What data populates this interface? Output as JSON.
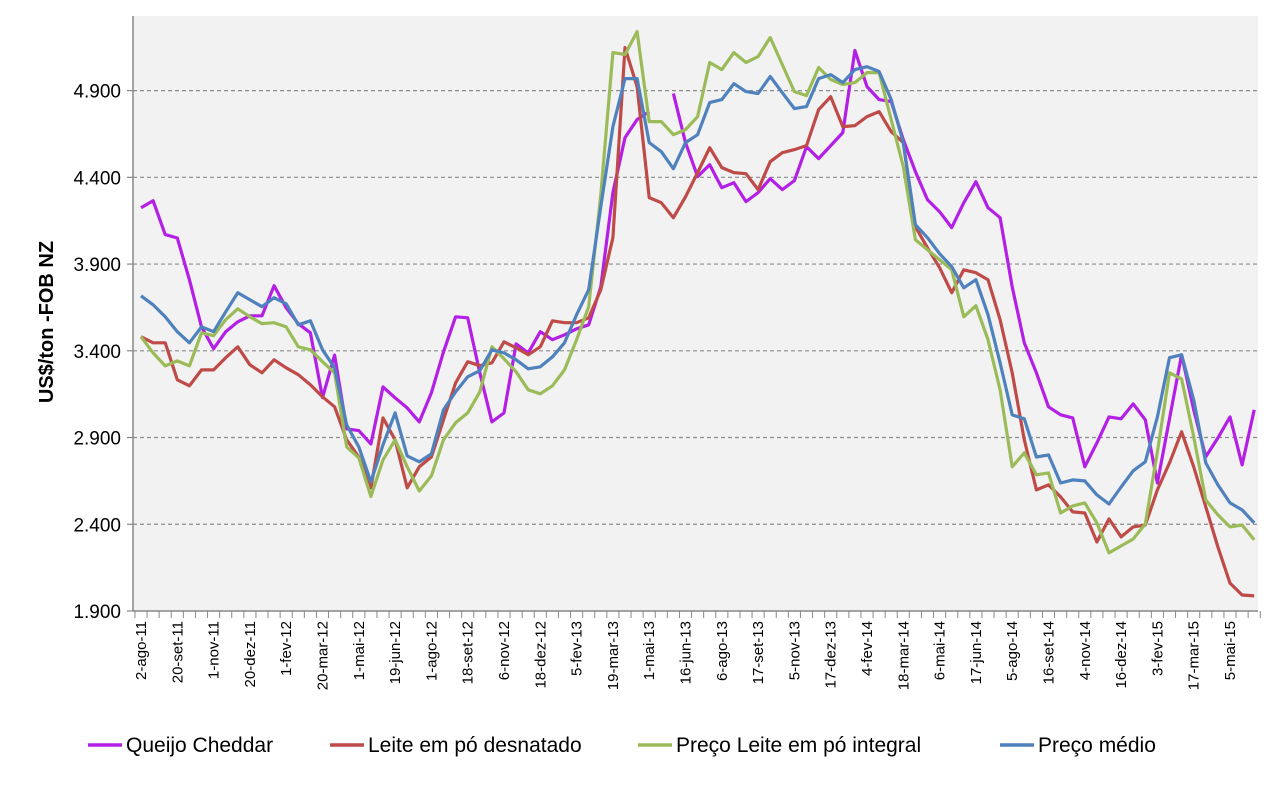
{
  "chart_data": {
    "type": "line",
    "title": "",
    "xlabel": "",
    "ylabel": "US$/ton -FOB NZ",
    "ylim": [
      1900,
      5330
    ],
    "y_ticks": [
      "1.900",
      "2.400",
      "2.900",
      "3.400",
      "3.900",
      "4.400",
      "4.900"
    ],
    "y_tick_values": [
      1900,
      2400,
      2900,
      3400,
      3900,
      4400,
      4900
    ],
    "x_tick_labels": [
      "2-ago-11",
      "20-set-11",
      "1-nov-11",
      "20-dez-11",
      "1-fev-12",
      "20-mar-12",
      "1-mai-12",
      "19-jun-12",
      "1-ago-12",
      "18-set-12",
      "6-nov-12",
      "18-dez-12",
      "5-fev-13",
      "19-mar-13",
      "1-mai-13",
      "16-jun-13",
      "6-ago-13",
      "17-set-13",
      "5-nov-13",
      "17-dez-13",
      "4-fev-14",
      "18-mar-14",
      "6-mai-14",
      "17-jun-14",
      "5-ago-14",
      "16-set-14",
      "4-nov-14",
      "16-dez-14",
      "3-fev-15",
      "17-mar-15",
      "5-mai-15"
    ],
    "x_label_every": 3,
    "grid": "horizontal dashed",
    "legend_position": "bottom",
    "series": [
      {
        "name": "Queijo Cheddar",
        "color": "#b41fe6",
        "values": [
          4225,
          4265,
          4070,
          4050,
          3810,
          3538,
          3412,
          3510,
          3567,
          3602,
          3602,
          3775,
          3648,
          3556,
          3504,
          3130,
          3375,
          2950,
          2940,
          2863,
          3192,
          3129,
          3071,
          2990,
          3158,
          3394,
          3596,
          3590,
          3273,
          2990,
          3042,
          3440,
          3388,
          3510,
          3464,
          3492,
          3527,
          3550,
          3769,
          4312,
          4629,
          4733,
          4779,
          null,
          4883,
          4600,
          4404,
          4473,
          4340,
          4369,
          4260,
          4312,
          4392,
          4329,
          4381,
          4577,
          4508,
          4583,
          4658,
          5131,
          4923,
          4848,
          4837,
          4617,
          4433,
          4271,
          4202,
          4110,
          4254,
          4375,
          4225,
          4167,
          3769,
          3446,
          3273,
          3077,
          3031,
          3013,
          2731,
          2869,
          3019,
          3008,
          3094,
          3002,
          2638,
          3008,
          3377,
          3060,
          2789,
          2898,
          3019,
          2742,
          3060
        ]
      },
      {
        "name": "Leite em pó desnatado",
        "color": "#be4b48",
        "values": [
          3481,
          3446,
          3446,
          3233,
          3198,
          3290,
          3290,
          3360,
          3423,
          3319,
          3273,
          3348,
          3302,
          3262,
          3204,
          3135,
          3077,
          2887,
          2788,
          2610,
          3013,
          2887,
          2610,
          2731,
          2788,
          3002,
          3215,
          3337,
          3314,
          3331,
          3452,
          3417,
          3377,
          3423,
          3573,
          3562,
          3562,
          3590,
          3752,
          4052,
          5148,
          4923,
          4283,
          4254,
          4167,
          4288,
          4427,
          4571,
          4456,
          4427,
          4421,
          4329,
          4490,
          4542,
          4560,
          4583,
          4790,
          4865,
          4692,
          4698,
          4750,
          4779,
          4663,
          4600,
          4115,
          3994,
          3879,
          3735,
          3867,
          3850,
          3810,
          3579,
          3273,
          2887,
          2598,
          2627,
          2558,
          2471,
          2465,
          2298,
          2431,
          2327,
          2385,
          2396,
          2598,
          2754,
          2933,
          2731,
          2500,
          2269,
          2061,
          1992,
          1987
        ]
      },
      {
        "name": "Preço Leite em pó integral",
        "color": "#9bbb59",
        "values": [
          3481,
          3388,
          3313,
          3342,
          3313,
          3504,
          3487,
          3579,
          3642,
          3596,
          3556,
          3562,
          3538,
          3423,
          3406,
          3337,
          3273,
          2846,
          2783,
          2560,
          2771,
          2887,
          2731,
          2592,
          2679,
          2887,
          2985,
          3042,
          3163,
          3423,
          3354,
          3279,
          3175,
          3152,
          3198,
          3290,
          3464,
          3654,
          4300,
          5119,
          5108,
          5240,
          4721,
          4721,
          4646,
          4675,
          4750,
          5062,
          5021,
          5119,
          5062,
          5096,
          5206,
          5050,
          4894,
          4871,
          5033,
          4964,
          4935,
          4946,
          5004,
          5004,
          4733,
          4462,
          4040,
          3983,
          3925,
          3867,
          3596,
          3660,
          3464,
          3175,
          2731,
          2812,
          2685,
          2696,
          2465,
          2506,
          2523,
          2408,
          2235,
          2275,
          2315,
          2402,
          2817,
          3273,
          3238,
          2904,
          2540,
          2454,
          2385,
          2396,
          2310
        ]
      },
      {
        "name": "Preço médio",
        "color": "#4f81bd",
        "values": [
          3717,
          3665,
          3596,
          3510,
          3446,
          3538,
          3510,
          3625,
          3735,
          3694,
          3654,
          3706,
          3671,
          3550,
          3573,
          3406,
          3302,
          2973,
          2846,
          2645,
          2858,
          3042,
          2794,
          2760,
          2806,
          3060,
          3163,
          3250,
          3285,
          3406,
          3388,
          3348,
          3296,
          3308,
          3365,
          3446,
          3608,
          3752,
          4231,
          4692,
          4969,
          4969,
          4600,
          4548,
          4450,
          4600,
          4646,
          4831,
          4848,
          4940,
          4894,
          4883,
          4981,
          4888,
          4796,
          4808,
          4969,
          4992,
          4946,
          5021,
          5038,
          5010,
          4848,
          4600,
          4127,
          4052,
          3960,
          3885,
          3763,
          3810,
          3608,
          3331,
          3031,
          3008,
          2788,
          2800,
          2638,
          2656,
          2650,
          2569,
          2517,
          2615,
          2708,
          2760,
          3019,
          3360,
          3377,
          3117,
          2754,
          2627,
          2523,
          2483,
          2408
        ]
      }
    ]
  }
}
